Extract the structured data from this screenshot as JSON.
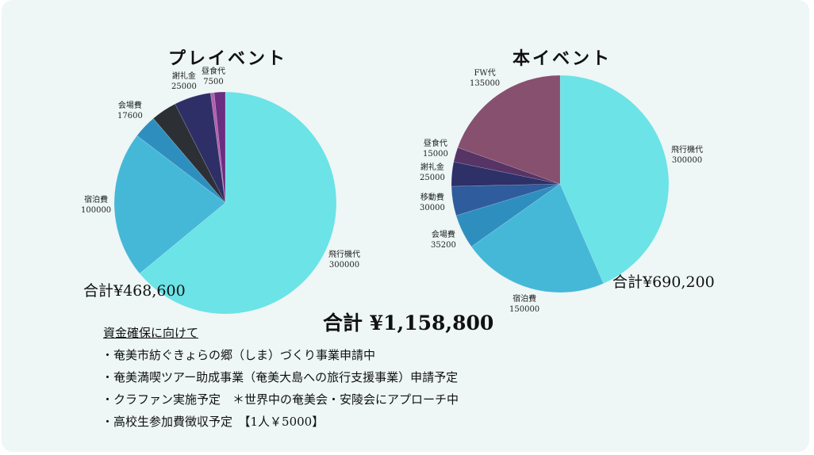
{
  "chart_data": [
    {
      "type": "pie",
      "title": "プレイベント",
      "total_label": "合計¥468,600",
      "slices": [
        {
          "label": "飛行機代",
          "value": 300000,
          "color": "#6ce3e6",
          "show": true
        },
        {
          "label": "宿泊費",
          "value": 100000,
          "color": "#45b8d8",
          "show": true
        },
        {
          "label": "",
          "value": 16000,
          "color": "#2e8fbf",
          "show": false
        },
        {
          "label": "会場費",
          "value": 17600,
          "color": "#2c3035",
          "show": true
        },
        {
          "label": "謝礼金",
          "value": 25000,
          "color": "#2e2f66",
          "show": true
        },
        {
          "label": "",
          "value": 2500,
          "color": "#b060b0",
          "show": false
        },
        {
          "label": "昼食代",
          "value": 7500,
          "color": "#6a2f80",
          "show": true
        }
      ]
    },
    {
      "type": "pie",
      "title": "本イベント",
      "total_label": "合計¥690,200",
      "slices": [
        {
          "label": "飛行機代",
          "value": 300000,
          "color": "#6ce3e6",
          "show": true
        },
        {
          "label": "宿泊費",
          "value": 150000,
          "color": "#45b8d8",
          "show": true
        },
        {
          "label": "会場費",
          "value": 35200,
          "color": "#2e8fbf",
          "show": true
        },
        {
          "label": "移動費",
          "value": 30000,
          "color": "#2e5c9c",
          "show": true
        },
        {
          "label": "謝礼金",
          "value": 25000,
          "color": "#2e3068",
          "show": true
        },
        {
          "label": "昼食代",
          "value": 15000,
          "color": "#573466",
          "show": true
        },
        {
          "label": "FW代",
          "value": 135000,
          "color": "#86506e",
          "show": true
        }
      ]
    }
  ],
  "grand_total": "合計 ¥1,158,800",
  "notes": {
    "heading": "資金確保に向けて",
    "items": [
      "・奄美市紡ぐきょらの郷（しま）づくり事業申請中",
      "・奄美満喫ツアー助成事業（奄美大島への旅行支援事業）申請予定",
      "・クラファン実施予定　＊世界中の奄美会・安陵会にアプローチ中",
      "・高校生参加費徴収予定　【1人￥5000】"
    ]
  }
}
